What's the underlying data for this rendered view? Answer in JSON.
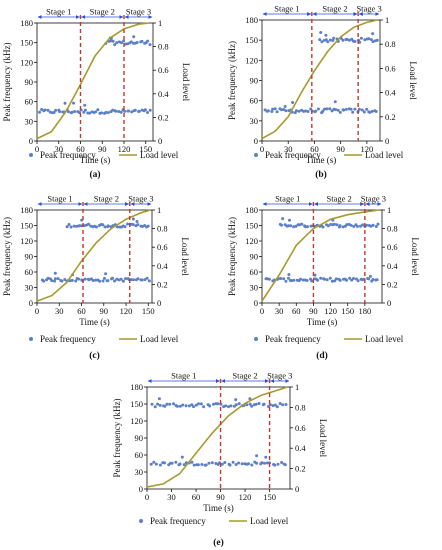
{
  "colors": {
    "scatter": "#5b7fc8",
    "load": "#a69a2e",
    "stage_line": "#c0392b",
    "stage_arrow": "#2a4fd6",
    "axis": "#111111"
  },
  "legend_labels": {
    "scatter": "Peak frequency",
    "line": "Load level"
  },
  "chart_data": [
    {
      "panel_label": "(a)",
      "type": "scatter",
      "xlabel": "Time (s)",
      "ylabel": "Peak frequency (kHz)",
      "y2label": "Load level",
      "xlim": [
        0,
        160
      ],
      "ylim": [
        0,
        180
      ],
      "y2lim": [
        0,
        1
      ],
      "xticks": [
        0,
        30,
        60,
        90,
        120,
        150
      ],
      "yticks": [
        0,
        30,
        60,
        90,
        120,
        150,
        180
      ],
      "y2ticks": [
        "0",
        "0.2",
        "0.4",
        "0.6",
        "0.8",
        "1"
      ],
      "stage_boundaries": [
        60,
        120
      ],
      "stages": [
        {
          "label": "Stage 1",
          "x_start": 0,
          "x_end": 60
        },
        {
          "label": "Stage 2",
          "x_start": 60,
          "x_end": 120
        },
        {
          "label": "Stage 3",
          "x_start": 120,
          "x_end": 160
        }
      ],
      "series": [
        {
          "name": "Peak frequency",
          "bands": [
            {
              "x_start": 2,
              "x_end": 158,
              "y_center": 45,
              "spread": 3
            },
            {
              "x_start": 95,
              "x_end": 158,
              "y_center": 150,
              "spread": 3
            }
          ]
        },
        {
          "name": "Load level",
          "x": [
            0,
            20,
            40,
            60,
            80,
            100,
            120,
            140,
            155
          ],
          "y": [
            0.02,
            0.08,
            0.25,
            0.48,
            0.72,
            0.87,
            0.95,
            0.99,
            1.0
          ]
        }
      ]
    },
    {
      "panel_label": "(b)",
      "type": "scatter",
      "xlabel": "Time (s)",
      "ylabel": "Peak frequency (kHz)",
      "y2label": "Load level",
      "xlim": [
        0,
        135
      ],
      "ylim": [
        0,
        180
      ],
      "y2lim": [
        0,
        1
      ],
      "xticks": [
        0,
        30,
        60,
        90,
        120
      ],
      "yticks": [
        0,
        30,
        60,
        90,
        120,
        150,
        180
      ],
      "y2ticks": [
        "0",
        "0.2",
        "0.4",
        "0.6",
        "0.8",
        "1"
      ],
      "stage_boundaries": [
        57,
        110
      ],
      "stages": [
        {
          "label": "Stage 1",
          "x_start": 0,
          "x_end": 57
        },
        {
          "label": "Stage 2",
          "x_start": 57,
          "x_end": 110
        },
        {
          "label": "Stage 3",
          "x_start": 110,
          "x_end": 135
        }
      ],
      "series": [
        {
          "name": "Peak frequency",
          "bands": [
            {
              "x_start": 2,
              "x_end": 133,
              "y_center": 45,
              "spread": 3
            },
            {
              "x_start": 65,
              "x_end": 133,
              "y_center": 150,
              "spread": 3
            }
          ]
        },
        {
          "name": "Load level",
          "x": [
            0,
            15,
            30,
            45,
            60,
            75,
            90,
            105,
            120,
            132
          ],
          "y": [
            0.02,
            0.08,
            0.2,
            0.4,
            0.58,
            0.74,
            0.86,
            0.94,
            0.98,
            1.0
          ]
        }
      ]
    },
    {
      "panel_label": "(c)",
      "type": "scatter",
      "xlabel": "Time (s)",
      "ylabel": "Peak frequency (kHz)",
      "y2label": "Load level",
      "xlim": [
        0,
        155
      ],
      "ylim": [
        0,
        180
      ],
      "y2lim": [
        0,
        1
      ],
      "xticks": [
        0,
        30,
        60,
        90,
        120,
        150
      ],
      "yticks": [
        0,
        30,
        60,
        90,
        120,
        150,
        180
      ],
      "y2ticks": [
        "0",
        "0.2",
        "0.4",
        "0.6",
        "0.8",
        "1"
      ],
      "stage_boundaries": [
        62,
        125
      ],
      "stages": [
        {
          "label": "Stage 1",
          "x_start": 0,
          "x_end": 62
        },
        {
          "label": "Stage 2",
          "x_start": 62,
          "x_end": 125
        },
        {
          "label": "Stage 3",
          "x_start": 125,
          "x_end": 155
        }
      ],
      "series": [
        {
          "name": "Peak frequency",
          "bands": [
            {
              "x_start": 5,
              "x_end": 152,
              "y_center": 45,
              "spread": 3
            },
            {
              "x_start": 40,
              "x_end": 152,
              "y_center": 150,
              "spread": 3
            }
          ]
        },
        {
          "name": "Load level",
          "x": [
            0,
            20,
            40,
            60,
            80,
            100,
            120,
            140,
            153
          ],
          "y": [
            0.02,
            0.08,
            0.22,
            0.45,
            0.65,
            0.8,
            0.9,
            0.97,
            1.0
          ]
        }
      ]
    },
    {
      "panel_label": "(d)",
      "type": "scatter",
      "xlabel": "Time (s)",
      "ylabel": "Peak frequency (kHz)",
      "y2label": "Load level",
      "xlim": [
        0,
        210
      ],
      "ylim": [
        0,
        180
      ],
      "y2lim": [
        0,
        1
      ],
      "xticks": [
        0,
        30,
        60,
        90,
        120,
        150,
        180
      ],
      "yticks": [
        0,
        30,
        60,
        90,
        120,
        150,
        180
      ],
      "y2ticks": [
        "0",
        "0.2",
        "0.4",
        "0.6",
        "0.8",
        "1"
      ],
      "stage_boundaries": [
        90,
        180
      ],
      "stages": [
        {
          "label": "Stage 1",
          "x_start": 0,
          "x_end": 90
        },
        {
          "label": "Stage 2",
          "x_start": 90,
          "x_end": 180
        },
        {
          "label": "Stage 3",
          "x_start": 180,
          "x_end": 210
        }
      ],
      "series": [
        {
          "name": "Peak frequency",
          "bands": [
            {
              "x_start": 5,
              "x_end": 205,
              "y_center": 45,
              "spread": 3
            },
            {
              "x_start": 30,
              "x_end": 205,
              "y_center": 150,
              "spread": 3
            }
          ]
        },
        {
          "name": "Load level",
          "x": [
            0,
            30,
            60,
            90,
            120,
            150,
            180,
            205
          ],
          "y": [
            0.02,
            0.3,
            0.62,
            0.8,
            0.9,
            0.95,
            0.98,
            1.0
          ]
        }
      ]
    },
    {
      "panel_label": "(e)",
      "type": "scatter",
      "xlabel": "Time (s)",
      "ylabel": "Peak frequency (kHz)",
      "y2label": "Load level",
      "xlim": [
        0,
        175
      ],
      "ylim": [
        0,
        180
      ],
      "y2lim": [
        0,
        1
      ],
      "xticks": [
        0,
        30,
        60,
        90,
        120,
        150
      ],
      "yticks": [
        0,
        30,
        60,
        90,
        120,
        150,
        180
      ],
      "y2ticks": [
        "0",
        "0.2",
        "0.4",
        "0.6",
        "0.8",
        "1"
      ],
      "stage_boundaries": [
        90,
        150
      ],
      "stages": [
        {
          "label": "Stage 1",
          "x_start": 0,
          "x_end": 90
        },
        {
          "label": "Stage 2",
          "x_start": 90,
          "x_end": 150
        },
        {
          "label": "Stage 3",
          "x_start": 150,
          "x_end": 175
        }
      ],
      "series": [
        {
          "name": "Peak frequency",
          "bands": [
            {
              "x_start": 5,
              "x_end": 172,
              "y_center": 45,
              "spread": 3
            },
            {
              "x_start": 5,
              "x_end": 172,
              "y_center": 148,
              "spread": 3
            }
          ]
        },
        {
          "name": "Load level",
          "x": [
            0,
            20,
            40,
            60,
            80,
            100,
            120,
            140,
            160,
            172
          ],
          "y": [
            0.02,
            0.05,
            0.15,
            0.35,
            0.55,
            0.72,
            0.84,
            0.92,
            0.97,
            1.0
          ]
        }
      ]
    }
  ]
}
